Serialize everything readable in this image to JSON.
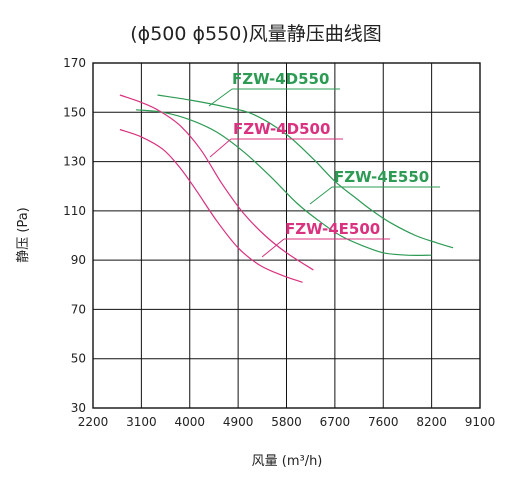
{
  "chart_data": {
    "type": "line",
    "title": "(ϕ500 ϕ550)风量静压曲线图",
    "xlabel": "风量 (m³/h)",
    "ylabel": "静压 (Pa)",
    "x_ticks": [
      "2200",
      "3100",
      "4000",
      "4900",
      "5800",
      "6700",
      "7600",
      "8200",
      "9100"
    ],
    "y_ticks": [
      "170",
      "150",
      "130",
      "110",
      "90",
      "70",
      "50",
      "30"
    ],
    "ylim": [
      30,
      170
    ],
    "grid": true,
    "series": [
      {
        "name": "FZW-4D550",
        "color": "#2e9b55",
        "x": [
          3400,
          4000,
          4700,
          5200,
          5800,
          6300,
          6700,
          7100,
          7400,
          7700,
          8000,
          8300,
          8600
        ],
        "y": [
          157,
          155,
          152,
          149,
          141,
          131,
          122,
          115,
          110,
          105,
          100,
          97,
          95
        ]
      },
      {
        "name": "FZW-4E550",
        "color": "#2e9b55",
        "x": [
          3000,
          3500,
          4000,
          4500,
          5000,
          5500,
          6000,
          6400,
          6800,
          7200,
          7600,
          7900,
          8200
        ],
        "y": [
          151,
          150,
          147,
          142,
          134,
          124,
          113,
          106,
          100,
          96,
          93,
          92,
          92
        ]
      },
      {
        "name": "FZW-4D500",
        "color": "#d9327f",
        "x": [
          2700,
          3100,
          3400,
          3800,
          4200,
          4600,
          5000,
          5400,
          5800,
          6300
        ],
        "y": [
          157,
          154,
          151,
          145,
          135,
          121,
          109,
          100,
          93,
          86
        ]
      },
      {
        "name": "FZW-4E500",
        "color": "#d9327f",
        "x": [
          2700,
          3100,
          3500,
          3800,
          4100,
          4500,
          4900,
          5300,
          5700,
          6100
        ],
        "y": [
          143,
          140,
          135,
          128,
          119,
          106,
          95,
          88,
          84,
          81
        ]
      }
    ]
  }
}
